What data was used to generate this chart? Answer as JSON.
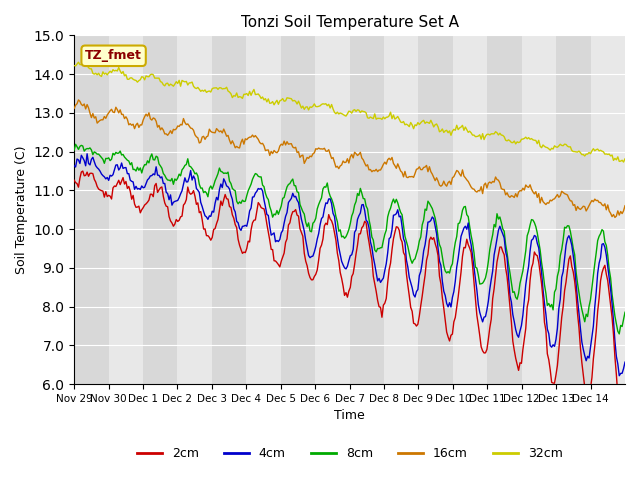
{
  "title": "Tonzi Soil Temperature Set A",
  "xlabel": "Time",
  "ylabel": "Soil Temperature (C)",
  "ylim": [
    6.0,
    15.0
  ],
  "yticks": [
    6.0,
    7.0,
    8.0,
    9.0,
    10.0,
    11.0,
    12.0,
    13.0,
    14.0,
    15.0
  ],
  "colors": {
    "2cm": "#cc0000",
    "4cm": "#0000cc",
    "8cm": "#00aa00",
    "16cm": "#cc7700",
    "32cm": "#cccc00"
  },
  "xtick_labels": [
    "Nov 29",
    "Nov 30",
    "Dec 1",
    "Dec 2",
    "Dec 3",
    "Dec 4",
    "Dec 5",
    "Dec 6",
    "Dec 7",
    "Dec 8",
    "Dec 9",
    "Dec 10",
    "Dec 11",
    "Dec 12",
    "Dec 13",
    "Dec 14"
  ],
  "legend_label": "TZ_fmet",
  "n_days": 16
}
